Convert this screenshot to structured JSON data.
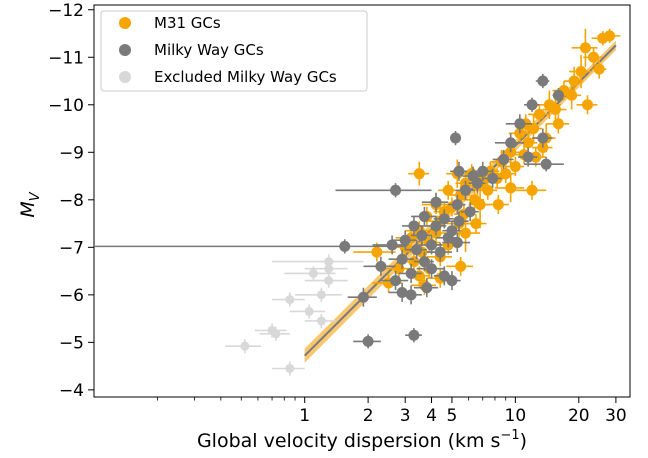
{
  "chart_data": {
    "type": "scatter",
    "xlabel": "Global velocity dispersion (km s",
    "xlabel_sup": "−1",
    "xlabel_end": ")",
    "ylabel": "M",
    "ylabel_sub": "V",
    "xscale": "log",
    "xlim": [
      0.1,
      35
    ],
    "ylim": [
      -3.85,
      -12.1
    ],
    "y_inverted": true,
    "x_ticks": [
      {
        "value": 1,
        "label": "1"
      },
      {
        "value": 2,
        "label": "2"
      },
      {
        "value": 3,
        "label": "3"
      },
      {
        "value": 4,
        "label": "4"
      },
      {
        "value": 5,
        "label": "5"
      },
      {
        "value": 10,
        "label": "10"
      },
      {
        "value": 20,
        "label": "20"
      },
      {
        "value": 30,
        "label": "30"
      }
    ],
    "y_ticks": [
      {
        "value": -12,
        "label": "−12"
      },
      {
        "value": -11,
        "label": "−11"
      },
      {
        "value": -10,
        "label": "−10"
      },
      {
        "value": -9,
        "label": "−9"
      },
      {
        "value": -8,
        "label": "−8"
      },
      {
        "value": -7,
        "label": "−7"
      },
      {
        "value": -6,
        "label": "−6"
      },
      {
        "value": -5,
        "label": "−5"
      },
      {
        "value": -4,
        "label": "−4"
      }
    ],
    "legend_position": "top-left",
    "colors": {
      "m31": "#f5a400",
      "mw": "#7a7a7a",
      "excluded": "#d8d8d8",
      "fit_band": "#f5b440"
    },
    "series": [
      {
        "name": "M31 GCs",
        "key": "m31",
        "points": [
          [
            28,
            -11.45,
            3.5,
            0.15
          ],
          [
            26,
            -11.4,
            3,
            0.15
          ],
          [
            21.5,
            -11.2,
            3,
            0.4
          ],
          [
            23.5,
            -11.0,
            2.5,
            0.2
          ],
          [
            20.5,
            -10.7,
            2.5,
            0.35
          ],
          [
            25,
            -10.75,
            2,
            0.2
          ],
          [
            19,
            -10.5,
            2,
            0.3
          ],
          [
            17,
            -10.3,
            2,
            0.2
          ],
          [
            18.5,
            -10.2,
            2,
            0.3
          ],
          [
            22,
            -10.0,
            2.5,
            0.2
          ],
          [
            14.5,
            -10.0,
            2,
            0.3
          ],
          [
            15.5,
            -9.9,
            2,
            0.25
          ],
          [
            13,
            -9.8,
            1.5,
            0.2
          ],
          [
            16,
            -9.6,
            2,
            0.2
          ],
          [
            11.2,
            -9.6,
            1.2,
            0.2
          ],
          [
            12.2,
            -9.5,
            1.2,
            0.3
          ],
          [
            10.5,
            -9.4,
            1.2,
            0.2
          ],
          [
            14,
            -9.3,
            1.5,
            0.3
          ],
          [
            11.5,
            -9.2,
            1.2,
            0.4
          ],
          [
            13.5,
            -9.1,
            1.5,
            0.2
          ],
          [
            9.5,
            -9.0,
            1,
            0.3
          ],
          [
            11,
            -8.95,
            1,
            0.2
          ],
          [
            12.5,
            -8.9,
            1.5,
            0.2
          ],
          [
            8.6,
            -8.8,
            1,
            0.25
          ],
          [
            10,
            -8.7,
            1,
            0.2
          ],
          [
            7.6,
            -8.6,
            0.8,
            0.2
          ],
          [
            9,
            -8.55,
            1,
            0.2
          ],
          [
            6.2,
            -8.55,
            0.6,
            0.2
          ],
          [
            5.3,
            -8.55,
            0.6,
            0.3
          ],
          [
            3.5,
            -8.55,
            0.4,
            0.25
          ],
          [
            8.2,
            -8.45,
            1,
            0.2
          ],
          [
            7,
            -8.4,
            0.8,
            0.2
          ],
          [
            5.8,
            -8.35,
            0.6,
            0.25
          ],
          [
            6.6,
            -8.3,
            0.7,
            0.2
          ],
          [
            9.5,
            -8.25,
            1.5,
            0.3
          ],
          [
            7.4,
            -8.2,
            0.8,
            0.2
          ],
          [
            12,
            -8.2,
            2,
            0.2
          ],
          [
            4.8,
            -8.2,
            0.5,
            0.2
          ],
          [
            5.5,
            -8.1,
            0.6,
            0.2
          ],
          [
            6.4,
            -8.0,
            0.7,
            0.2
          ],
          [
            4.2,
            -7.9,
            0.6,
            0.2
          ],
          [
            5.0,
            -7.85,
            0.5,
            0.2
          ],
          [
            6.8,
            -7.9,
            0.8,
            0.5
          ],
          [
            4.6,
            -7.75,
            0.5,
            0.2
          ],
          [
            5.7,
            -7.7,
            0.6,
            0.2
          ],
          [
            8.3,
            -7.9,
            1,
            0.2
          ],
          [
            3.8,
            -7.65,
            0.5,
            0.2
          ],
          [
            4.4,
            -7.55,
            0.5,
            0.2
          ],
          [
            5.4,
            -7.5,
            0.7,
            0.3
          ],
          [
            6.5,
            -7.5,
            0.8,
            0.2
          ],
          [
            3.5,
            -7.35,
            0.5,
            0.2
          ],
          [
            4.2,
            -7.3,
            0.5,
            0.2
          ],
          [
            3.2,
            -7.2,
            0.5,
            0.2
          ],
          [
            5.8,
            -7.3,
            1,
            0.4
          ],
          [
            3.9,
            -7.1,
            0.5,
            0.2
          ],
          [
            4.8,
            -7.05,
            0.6,
            0.2
          ],
          [
            3.0,
            -7.0,
            0.4,
            0.2
          ],
          [
            3.6,
            -6.9,
            0.5,
            0.2
          ],
          [
            2.2,
            -6.9,
            0.5,
            0.2
          ],
          [
            4.4,
            -6.8,
            0.6,
            0.2
          ],
          [
            3.3,
            -6.7,
            0.4,
            0.2
          ],
          [
            5.5,
            -6.6,
            0.8,
            0.2
          ],
          [
            3.9,
            -6.55,
            0.5,
            0.2
          ],
          [
            2.8,
            -6.55,
            0.4,
            0.2
          ],
          [
            3.5,
            -6.4,
            0.4,
            0.2
          ],
          [
            4.4,
            -6.35,
            0.6,
            0.2
          ],
          [
            2.5,
            -6.25,
            0.4,
            0.2
          ],
          [
            3.7,
            -6.2,
            0.5,
            0.2
          ]
        ]
      },
      {
        "name": "Milky Way GCs",
        "key": "mw",
        "points": [
          [
            13.5,
            -10.5,
            1,
            0.15
          ],
          [
            16,
            -10.2,
            1,
            0.15
          ],
          [
            12,
            -10.0,
            1,
            0.15
          ],
          [
            10.5,
            -9.6,
            1.5,
            0.2
          ],
          [
            5.2,
            -9.3,
            0.3,
            0.15
          ],
          [
            13.5,
            -9.3,
            1.5,
            0.2
          ],
          [
            9.5,
            -9.2,
            1.5,
            0.2
          ],
          [
            8.8,
            -8.85,
            1,
            0.2
          ],
          [
            14,
            -8.75,
            3,
            0.15
          ],
          [
            5.4,
            -8.6,
            0.5,
            0.2
          ],
          [
            11.5,
            -8.9,
            1.2,
            0.2
          ],
          [
            6.3,
            -8.5,
            0.7,
            0.2
          ],
          [
            7,
            -8.6,
            0.8,
            0.2
          ],
          [
            6.6,
            -8.35,
            0.6,
            0.2
          ],
          [
            5.8,
            -8.2,
            0.6,
            0.2
          ],
          [
            2.7,
            -8.2,
            1.3,
            0.15
          ],
          [
            7.8,
            -8.45,
            0.8,
            0.2
          ],
          [
            4.2,
            -7.95,
            0.6,
            0.2
          ],
          [
            5.3,
            -7.9,
            0.5,
            0.2
          ],
          [
            6.1,
            -7.75,
            0.6,
            0.2
          ],
          [
            3.7,
            -7.65,
            0.5,
            0.2
          ],
          [
            4.6,
            -7.6,
            0.5,
            0.2
          ],
          [
            5.4,
            -7.55,
            0.6,
            0.2
          ],
          [
            3.3,
            -7.45,
            0.4,
            0.2
          ],
          [
            4.2,
            -7.45,
            0.5,
            0.2
          ],
          [
            5.0,
            -7.35,
            0.5,
            0.2
          ],
          [
            3.6,
            -7.25,
            0.4,
            0.2
          ],
          [
            4.8,
            -7.2,
            0.6,
            0.2
          ],
          [
            3.0,
            -7.15,
            0.4,
            0.2
          ],
          [
            4.0,
            -7.05,
            0.5,
            0.2
          ],
          [
            5.3,
            -7.1,
            0.8,
            0.2
          ],
          [
            2.6,
            -7.05,
            0.5,
            0.2
          ],
          [
            3.4,
            -6.95,
            0.4,
            0.2
          ],
          [
            4.4,
            -6.9,
            0.6,
            0.2
          ],
          [
            2.9,
            -6.75,
            0.4,
            0.2
          ],
          [
            3.7,
            -6.7,
            0.4,
            0.2
          ],
          [
            2.3,
            -6.6,
            0.4,
            0.2
          ],
          [
            4.0,
            -6.55,
            0.6,
            0.2
          ],
          [
            3.2,
            -6.45,
            0.4,
            0.2
          ],
          [
            4.6,
            -6.4,
            0.5,
            0.2
          ],
          [
            2.7,
            -6.3,
            0.4,
            0.2
          ],
          [
            5.0,
            -6.3,
            0.5,
            0.2
          ],
          [
            3.8,
            -6.15,
            0.5,
            0.2
          ],
          [
            2.9,
            -6.05,
            0.4,
            0.2
          ],
          [
            3.2,
            -6.0,
            0.4,
            0.2
          ],
          [
            1.9,
            -5.95,
            0.3,
            0.2
          ],
          [
            3.3,
            -5.15,
            0.3,
            0.15
          ],
          [
            2.0,
            -5.02,
            0.3,
            0.15
          ],
          [
            1.55,
            -7.02,
            1.5,
            0.15
          ]
        ]
      },
      {
        "name": "Excluded Milky Way GCs",
        "key": "excluded",
        "points": [
          [
            1.3,
            -6.7,
            0.6,
            0.15
          ],
          [
            1.3,
            -6.55,
            0.3,
            0.15
          ],
          [
            1.1,
            -6.45,
            0.3,
            0.15
          ],
          [
            1.3,
            -6.3,
            0.3,
            0.15
          ],
          [
            1.2,
            -6.0,
            0.3,
            0.15
          ],
          [
            0.85,
            -5.9,
            0.15,
            0.15
          ],
          [
            1.2,
            -5.45,
            0.2,
            0.15
          ],
          [
            1.05,
            -5.65,
            0.2,
            0.15
          ],
          [
            0.7,
            -5.25,
            0.12,
            0.15
          ],
          [
            0.73,
            -5.18,
            0.12,
            0.15
          ],
          [
            0.52,
            -4.92,
            0.1,
            0.15
          ],
          [
            0.85,
            -4.45,
            0.15,
            0.15
          ]
        ]
      }
    ],
    "fit": {
      "x_start": 1.0,
      "x_end": 30,
      "y_start": -4.72,
      "y_end": -11.25,
      "band_start": 0.15,
      "band_end": 0.1
    }
  }
}
